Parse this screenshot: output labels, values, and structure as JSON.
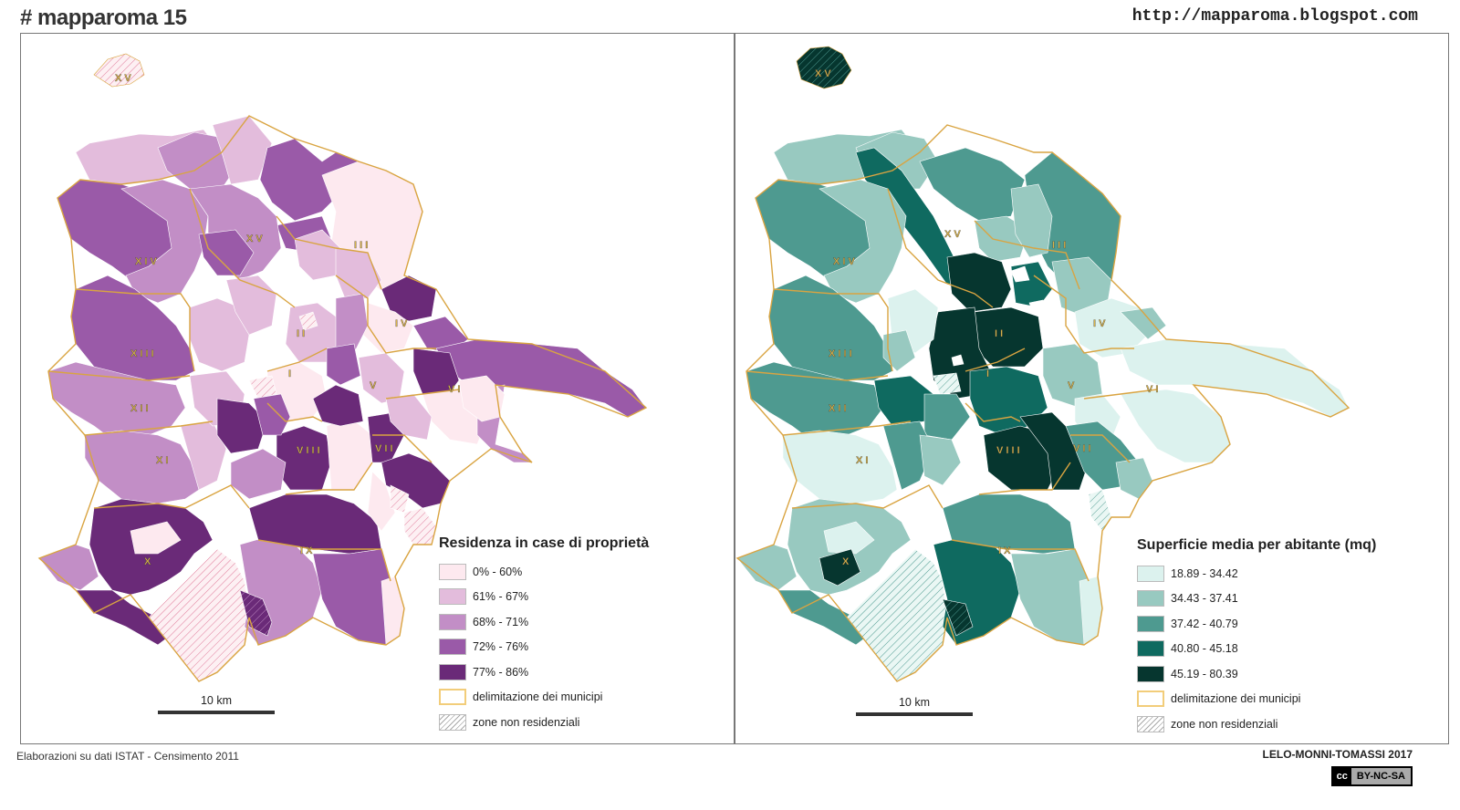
{
  "header": {
    "title": "# mapparoma 15",
    "url": "http://mapparoma.blogspot.com"
  },
  "left_map": {
    "legend_title": "Residenza in case di proprietà",
    "classes": [
      {
        "label": "0% - 60%",
        "color": "#fde9ef"
      },
      {
        "label": "61% - 67%",
        "color": "#e3bcdc"
      },
      {
        "label": "68% - 71%",
        "color": "#c28ec6"
      },
      {
        "label": "72% - 76%",
        "color": "#9a5aa8"
      },
      {
        "label": "77% - 86%",
        "color": "#6a2a78"
      }
    ],
    "border_label": "delimitazione dei municipi",
    "hatch_label": "zone non residenziali",
    "scale_label": "10 km"
  },
  "right_map": {
    "legend_title": "Superficie media per abitante (mq)",
    "classes": [
      {
        "label": "18.89 - 34.42",
        "color": "#dcf2ee"
      },
      {
        "label": "34.43 - 37.41",
        "color": "#98c9c0"
      },
      {
        "label": "37.42 - 40.79",
        "color": "#4e9a90"
      },
      {
        "label": "40.80 - 45.18",
        "color": "#0f6a60"
      },
      {
        "label": "45.19 - 80.39",
        "color": "#06362f"
      }
    ],
    "border_label": "delimitazione dei municipi",
    "hatch_label": "zone non residenziali",
    "scale_label": "10 km"
  },
  "municipi": [
    "I",
    "II",
    "III",
    "IV",
    "V",
    "VI",
    "VII",
    "VIII",
    "IX",
    "X",
    "XI",
    "XII",
    "XIII",
    "XIV",
    "XV"
  ],
  "footer": {
    "source": "Elaborazioni su dati ISTAT - Censimento 2011",
    "authors": "LELO-MONNI-TOMASSI 2017",
    "license_cc": "cc",
    "license": "BY-NC-SA"
  },
  "colors": {
    "municipio_border": "#d9a441"
  }
}
